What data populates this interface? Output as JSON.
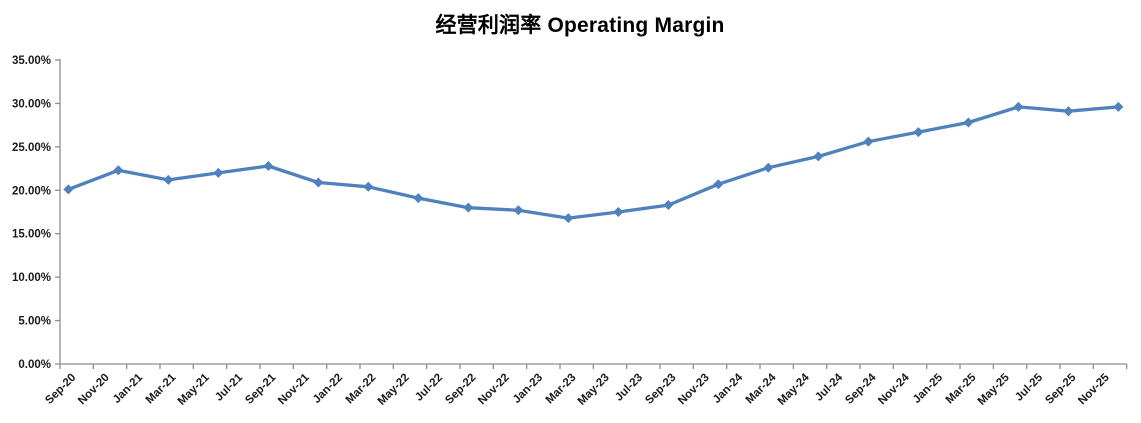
{
  "chart_data": {
    "type": "line",
    "title": "经营利润率 Operating Margin",
    "xlabel": "",
    "ylabel": "",
    "ylim": [
      0,
      35
    ],
    "grid": false,
    "legend": false,
    "marker": "diamond",
    "line_color": "#4F81BD",
    "axis_color": "#8e8e8e",
    "label_color": "#1a1a1a",
    "background_color": "#ffffff",
    "x_axis_type": "date-bimonthly-labels",
    "y_ticks": [
      {
        "value": 0,
        "label": "0.00%"
      },
      {
        "value": 5,
        "label": "5.00%"
      },
      {
        "value": 10,
        "label": "10.00%"
      },
      {
        "value": 15,
        "label": "15.00%"
      },
      {
        "value": 20,
        "label": "20.00%"
      },
      {
        "value": 25,
        "label": "25.00%"
      },
      {
        "value": 30,
        "label": "30.00%"
      },
      {
        "value": 35,
        "label": "35.00%"
      }
    ],
    "x_tick_labels": [
      "Sep-20",
      "Nov-20",
      "Jan-21",
      "Mar-21",
      "May-21",
      "Jul-21",
      "Sep-21",
      "Nov-21",
      "Jan-22",
      "Mar-22",
      "May-22",
      "Jul-22",
      "Sep-22",
      "Nov-22",
      "Jan-23",
      "Mar-23",
      "May-23",
      "Jul-23",
      "Sep-23",
      "Nov-23",
      "Jan-24",
      "Mar-24",
      "May-24",
      "Jul-24",
      "Sep-24",
      "Nov-24",
      "Jan-25",
      "Mar-25",
      "May-25",
      "Jul-25",
      "Sep-25",
      "Nov-25"
    ],
    "series": [
      {
        "name": "经营利润率 Operating Margin",
        "color": "#4F81BD",
        "points": [
          {
            "x": "Sep-20",
            "y": 20.1
          },
          {
            "x": "Dec-20",
            "y": 22.3
          },
          {
            "x": "Mar-21",
            "y": 21.2
          },
          {
            "x": "Jun-21",
            "y": 22.0
          },
          {
            "x": "Sep-21",
            "y": 22.8
          },
          {
            "x": "Dec-21",
            "y": 20.9
          },
          {
            "x": "Mar-22",
            "y": 20.4
          },
          {
            "x": "Jun-22",
            "y": 19.1
          },
          {
            "x": "Sep-22",
            "y": 18.0
          },
          {
            "x": "Dec-22",
            "y": 17.7
          },
          {
            "x": "Mar-23",
            "y": 16.8
          },
          {
            "x": "Jun-23",
            "y": 17.5
          },
          {
            "x": "Sep-23",
            "y": 18.3
          },
          {
            "x": "Dec-23",
            "y": 20.7
          },
          {
            "x": "Mar-24",
            "y": 22.6
          },
          {
            "x": "Jun-24",
            "y": 23.9
          },
          {
            "x": "Sep-24",
            "y": 25.6
          },
          {
            "x": "Dec-24",
            "y": 26.7
          },
          {
            "x": "Mar-25",
            "y": 27.8
          },
          {
            "x": "Jun-25",
            "y": 29.6
          },
          {
            "x": "Sep-25",
            "y": 29.1
          },
          {
            "x": "Dec-25",
            "y": 29.6
          }
        ]
      }
    ]
  }
}
